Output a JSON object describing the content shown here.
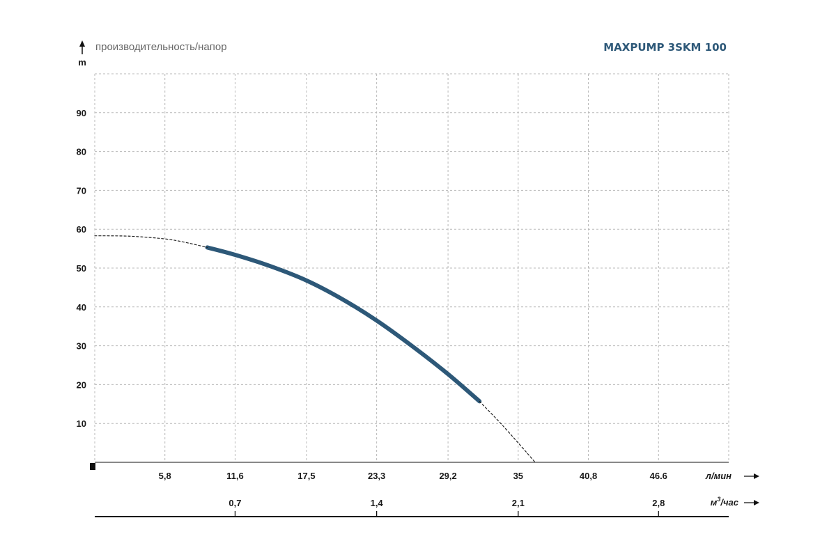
{
  "chart_data": {
    "type": "line",
    "title": "MAXPUMP 3SKM 100",
    "ylabel": "производительность/напор",
    "yunit": "m",
    "ylim": [
      0,
      100
    ],
    "yticks": [
      10,
      20,
      30,
      40,
      50,
      60,
      70,
      80,
      90
    ],
    "xlim": [
      0,
      52.4
    ],
    "grid": true,
    "x_axes": [
      {
        "unit": "л/мин",
        "ticks": [
          "5,8",
          "11,6",
          "17,5",
          "23,3",
          "29,2",
          "35",
          "40,8",
          "46.6"
        ],
        "tick_values": [
          5.8,
          11.6,
          17.5,
          23.3,
          29.2,
          35,
          40.8,
          46.6
        ]
      },
      {
        "unit_base": "м",
        "unit_sup": "3",
        "unit_tail": "/час",
        "ticks": [
          "0,7",
          "1,4",
          "2,1",
          "2,8"
        ],
        "tick_values": [
          11.6,
          23.3,
          35,
          46.6
        ]
      }
    ],
    "series": [
      {
        "style": "solid",
        "x": [
          9.3,
          11.6,
          14.5,
          17.5,
          20.4,
          23.3,
          26.2,
          29.2,
          31.8
        ],
        "y": [
          55.3,
          53.4,
          50.5,
          46.8,
          42.1,
          36.5,
          30.0,
          22.7,
          15.7
        ]
      },
      {
        "style": "dashed",
        "x": [
          0,
          2.9,
          5.8,
          7.5,
          9.3
        ],
        "y": [
          58.3,
          58.2,
          57.5,
          56.6,
          55.3
        ]
      },
      {
        "style": "dashed",
        "x": [
          31.8,
          33.5,
          35,
          36.4
        ],
        "y": [
          15.7,
          10.2,
          5.0,
          0.0
        ]
      }
    ],
    "colors": {
      "curve": "#2d5878",
      "title": "#2d5878",
      "axis": "#111111",
      "grid": "#b8b8b8"
    }
  }
}
